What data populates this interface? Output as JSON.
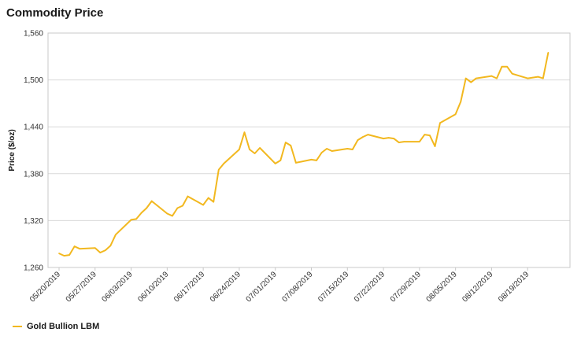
{
  "page": {
    "title": "Commodity Price"
  },
  "colors": {
    "series": "#F2B81F",
    "grid": "#D9D9D9",
    "frame": "#C8C8C8"
  },
  "chart_data": {
    "type": "line",
    "title": "Commodity Price",
    "xlabel": "",
    "ylabel": "Price ($/oz)",
    "ylim": [
      1260,
      1560
    ],
    "yticks": [
      1260,
      1320,
      1380,
      1440,
      1500,
      1560
    ],
    "ytick_labels": [
      "1,260",
      "1,320",
      "1,380",
      "1,440",
      "1,500",
      "1,560"
    ],
    "xticks": [
      "05/20/2019",
      "05/27/2019",
      "06/03/2019",
      "06/10/2019",
      "06/17/2019",
      "06/24/2019",
      "07/01/2019",
      "07/08/2019",
      "07/15/2019",
      "07/22/2019",
      "07/29/2019",
      "08/05/2019",
      "08/12/2019",
      "08/19/2019"
    ],
    "x_range": [
      "2019-05-20",
      "2019-08-26"
    ],
    "grid": true,
    "legend_position": "bottom-left",
    "series": [
      {
        "name": "Gold Bullion LBM",
        "color": "#F2B81F",
        "points": [
          [
            "2019-05-20",
            1278
          ],
          [
            "2019-05-21",
            1275
          ],
          [
            "2019-05-22",
            1276
          ],
          [
            "2019-05-23",
            1287
          ],
          [
            "2019-05-24",
            1284
          ],
          [
            "2019-05-27",
            1285
          ],
          [
            "2019-05-28",
            1279
          ],
          [
            "2019-05-29",
            1282
          ],
          [
            "2019-05-30",
            1288
          ],
          [
            "2019-05-31",
            1302
          ],
          [
            "2019-06-03",
            1321
          ],
          [
            "2019-06-04",
            1322
          ],
          [
            "2019-06-05",
            1330
          ],
          [
            "2019-06-06",
            1336
          ],
          [
            "2019-06-07",
            1345
          ],
          [
            "2019-06-10",
            1329
          ],
          [
            "2019-06-11",
            1326
          ],
          [
            "2019-06-12",
            1336
          ],
          [
            "2019-06-13",
            1339
          ],
          [
            "2019-06-14",
            1351
          ],
          [
            "2019-06-17",
            1340
          ],
          [
            "2019-06-18",
            1349
          ],
          [
            "2019-06-19",
            1344
          ],
          [
            "2019-06-20",
            1385
          ],
          [
            "2019-06-21",
            1393
          ],
          [
            "2019-06-24",
            1411
          ],
          [
            "2019-06-25",
            1433
          ],
          [
            "2019-06-26",
            1411
          ],
          [
            "2019-06-27",
            1406
          ],
          [
            "2019-06-28",
            1413
          ],
          [
            "2019-07-01",
            1393
          ],
          [
            "2019-07-02",
            1397
          ],
          [
            "2019-07-03",
            1420
          ],
          [
            "2019-07-04",
            1416
          ],
          [
            "2019-07-05",
            1394
          ],
          [
            "2019-07-08",
            1398
          ],
          [
            "2019-07-09",
            1397
          ],
          [
            "2019-07-10",
            1407
          ],
          [
            "2019-07-11",
            1412
          ],
          [
            "2019-07-12",
            1409
          ],
          [
            "2019-07-15",
            1412
          ],
          [
            "2019-07-16",
            1411
          ],
          [
            "2019-07-17",
            1423
          ],
          [
            "2019-07-18",
            1427
          ],
          [
            "2019-07-19",
            1430
          ],
          [
            "2019-07-22",
            1425
          ],
          [
            "2019-07-23",
            1426
          ],
          [
            "2019-07-24",
            1425
          ],
          [
            "2019-07-25",
            1420
          ],
          [
            "2019-07-26",
            1421
          ],
          [
            "2019-07-29",
            1421
          ],
          [
            "2019-07-30",
            1430
          ],
          [
            "2019-07-31",
            1429
          ],
          [
            "2019-08-01",
            1415
          ],
          [
            "2019-08-02",
            1445
          ],
          [
            "2019-08-05",
            1456
          ],
          [
            "2019-08-06",
            1472
          ],
          [
            "2019-08-07",
            1502
          ],
          [
            "2019-08-08",
            1497
          ],
          [
            "2019-08-09",
            1502
          ],
          [
            "2019-08-12",
            1505
          ],
          [
            "2019-08-13",
            1502
          ],
          [
            "2019-08-14",
            1517
          ],
          [
            "2019-08-15",
            1517
          ],
          [
            "2019-08-16",
            1508
          ],
          [
            "2019-08-19",
            1502
          ],
          [
            "2019-08-20",
            1503
          ],
          [
            "2019-08-21",
            1504
          ],
          [
            "2019-08-22",
            1502
          ],
          [
            "2019-08-23",
            1535
          ]
        ]
      }
    ]
  }
}
